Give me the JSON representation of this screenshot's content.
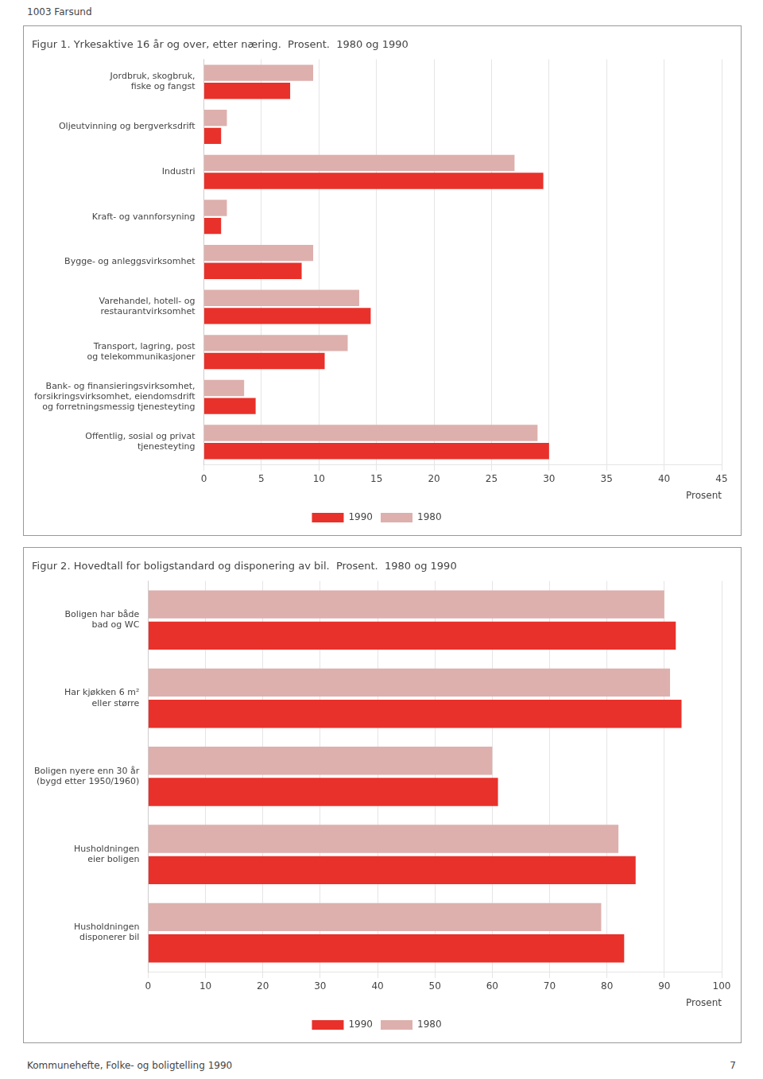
{
  "page_header": "1003 Farsund",
  "footer": "Kommunehefte, Folke- og boligtelling 1990",
  "page_number": "7",
  "chart_data": [
    {
      "type": "bar",
      "orientation": "horizontal",
      "title": "Figur 1. Yrkesaktive 16 år og over, etter næring.  Prosent.  1980 og 1990",
      "categories": [
        "Jordbruk, skogbruk,\nfiske og fangst",
        "Oljeutvinning og bergverksdrift",
        "Industri",
        "Kraft- og vannforsyning",
        "Bygge- og anleggsvirksomhet",
        "Varehandel, hotell- og\nrestaurantvirksomhet",
        "Transport, lagring, post\nog telekommunikasjoner",
        "Bank- og finansieringsvirksomhet,\nforsikringsvirksomhet, eiendomsdrift\nog forretningsmessig tjenesteyting",
        "Offentlig, sosial og privat\ntjenesteyting"
      ],
      "series": [
        {
          "name": "1990",
          "color": "#e8312a",
          "values": [
            7.5,
            1.5,
            29.5,
            1.5,
            8.5,
            14.5,
            10.5,
            4.5,
            30.0
          ]
        },
        {
          "name": "1980",
          "color": "#ddb0ad",
          "values": [
            9.5,
            2.0,
            27.0,
            2.0,
            9.5,
            13.5,
            12.5,
            3.5,
            29.0
          ]
        }
      ],
      "xlabel": "Prosent",
      "xlim": [
        0,
        45
      ],
      "xticks": [
        0,
        5,
        10,
        15,
        20,
        25,
        30,
        35,
        40,
        45
      ],
      "grid": true,
      "legend": "bottom"
    },
    {
      "type": "bar",
      "orientation": "horizontal",
      "title": "Figur 2. Hovedtall for boligstandard og disponering av bil.  Prosent.  1980 og 1990",
      "categories": [
        "Boligen har både\nbad og WC",
        "Har kjøkken 6 m²\neller større",
        "Boligen nyere enn 30 år\n(bygd etter 1950/1960)",
        "Husholdningen\neier boligen",
        "Husholdningen\ndisponerer bil"
      ],
      "series": [
        {
          "name": "1990",
          "color": "#e8312a",
          "values": [
            92.0,
            93.0,
            61.0,
            85.0,
            83.0
          ]
        },
        {
          "name": "1980",
          "color": "#ddb0ad",
          "values": [
            90.0,
            91.0,
            60.0,
            82.0,
            79.0
          ]
        }
      ],
      "xlabel": "Prosent",
      "xlim": [
        0,
        100
      ],
      "xticks": [
        0,
        10,
        20,
        30,
        40,
        50,
        60,
        70,
        80,
        90,
        100
      ],
      "grid": true,
      "legend": "bottom"
    }
  ]
}
